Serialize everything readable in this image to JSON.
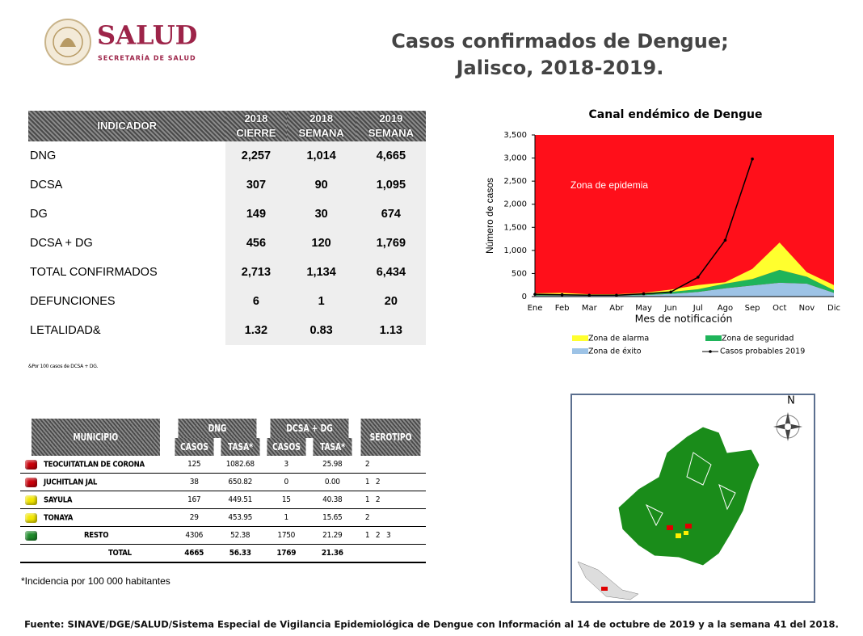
{
  "header": {
    "logo": "SALUD",
    "logo_sub": "SECRETARÍA DE SALUD",
    "title": [
      "Casos confirmados de Dengue;",
      "Jalisco, 2018-2019."
    ]
  },
  "indicators": {
    "columns": [
      [
        "INDICADOR"
      ],
      [
        "2018",
        "CIERRE"
      ],
      [
        "2018",
        "SEMANA"
      ],
      [
        "2019",
        "SEMANA"
      ]
    ],
    "rows": [
      [
        "DNG",
        "2,257",
        "1,014",
        "4,665"
      ],
      [
        "DCSA",
        "307",
        "90",
        "1,095"
      ],
      [
        "DG",
        "149",
        "30",
        "674"
      ],
      [
        "DCSA + DG",
        "456",
        "120",
        "1,769"
      ],
      [
        "TOTAL CONFIRMADOS",
        "2,713",
        "1,134",
        "6,434"
      ],
      [
        "DEFUNCIONES",
        "6",
        "1",
        "20"
      ],
      [
        "LETALIDAD&",
        "1.32",
        "0.83",
        "1.13"
      ]
    ],
    "note": "&Por 100 casos de DCSA + DG."
  },
  "chart_data": {
    "type": "area",
    "stacked": true,
    "title": "Canal endémico de Dengue",
    "x_label": "Mes de notificación",
    "y_label": "Número de casos",
    "categories": [
      "Ene",
      "Feb",
      "Mar",
      "Abr",
      "May",
      "Jun",
      "Jul",
      "Ago",
      "Sep",
      "Oct",
      "Nov",
      "Dic"
    ],
    "ylim": [
      0,
      3500
    ],
    "yticks": [
      0,
      500,
      {
        "value": 1000,
        "label": "1,000"
      },
      {
        "value": 1500,
        "label": "1,500"
      },
      {
        "value": 2000,
        "label": "2,000"
      },
      {
        "value": 2500,
        "label": "2,500"
      },
      {
        "value": 3000,
        "label": "3,000"
      },
      {
        "value": 3500,
        "label": "3,500"
      }
    ],
    "plot_color": "#ff0f1a",
    "annotation": "Zona de epidemia",
    "series": [
      {
        "name": "Zona de éxito",
        "color": "#9dc3e6",
        "values": [
          20,
          25,
          20,
          20,
          30,
          60,
          100,
          180,
          240,
          300,
          280,
          80
        ]
      },
      {
        "name": "Zona de seguridad",
        "color": "#1fb45a",
        "values": [
          20,
          20,
          15,
          15,
          25,
          40,
          60,
          100,
          140,
          280,
          150,
          60
        ]
      },
      {
        "name": "Zona de alarma",
        "color": "#ffff2e",
        "values": [
          30,
          35,
          15,
          15,
          25,
          50,
          90,
          30,
          220,
          590,
          100,
          110
        ]
      },
      {
        "name": "Casos probables 2019",
        "type": "line",
        "color": "#000000",
        "values": [
          50,
          40,
          30,
          30,
          60,
          100,
          420,
          1220,
          2980,
          null,
          null,
          null
        ]
      }
    ]
  },
  "municipios": {
    "group_headers": [
      "MUNICIPIO",
      "DNG",
      "DCSA + DG",
      "SEROTIPO"
    ],
    "sub_headers": [
      "CASOS",
      "TASA*",
      "CASOS",
      "TASA*"
    ],
    "rows": [
      {
        "color": "#c8000a",
        "cells": [
          "TEOCUITATLAN DE CORONA",
          "125",
          "1082.68",
          "3",
          "25.98",
          "2"
        ]
      },
      {
        "color": "#c8000a",
        "cells": [
          "JUCHITLAN JAL",
          "38",
          "650.82",
          "0",
          "0.00",
          "1   2"
        ]
      },
      {
        "color": "#f2e600",
        "cells": [
          "SAYULA",
          "167",
          "449.51",
          "15",
          "40.38",
          "1   2"
        ]
      },
      {
        "color": "#f2e600",
        "cells": [
          "TONAYA",
          "29",
          "453.95",
          "1",
          "15.65",
          "2"
        ]
      },
      {
        "color": "#1e8a2a",
        "cells": [
          "RESTO",
          "4306",
          "52.38",
          "1750",
          "21.29",
          "1   2   3"
        ]
      },
      {
        "cells": [
          "TOTAL",
          "4665",
          "56.33",
          "1769",
          "21.36",
          ""
        ]
      }
    ],
    "note": "*Incidencia por 100 000 habitantes"
  },
  "map": {
    "north": "N"
  },
  "footer": "Fuente: SINAVE/DGE/SALUD/Sistema Especial de Vigilancia Epidemiológica de Dengue con Información al 14 de octubre de 2019 y a la semana 41 del 2018."
}
